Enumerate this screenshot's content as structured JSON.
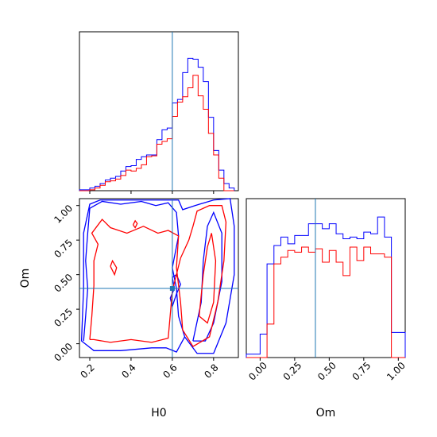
{
  "chart_data": {
    "type": "corner",
    "parameters": [
      "H0",
      "Om"
    ],
    "truths": {
      "H0": 0.6,
      "Om": 0.4
    },
    "colors": {
      "blue": "#0000ff",
      "red": "#ff0000",
      "truth": "#1f77b4"
    },
    "panels": [
      {
        "id": "hist_H0",
        "type": "histogram",
        "xlim": [
          0.15,
          0.92
        ],
        "bin_edges": [
          0.15,
          0.175,
          0.2,
          0.225,
          0.25,
          0.275,
          0.3,
          0.325,
          0.35,
          0.375,
          0.4,
          0.425,
          0.45,
          0.475,
          0.5,
          0.525,
          0.55,
          0.575,
          0.6,
          0.625,
          0.65,
          0.675,
          0.7,
          0.725,
          0.75,
          0.775,
          0.8,
          0.825,
          0.85,
          0.875,
          0.9
        ],
        "series": [
          {
            "color": "blue",
            "counts": [
              1,
              1,
              3,
              5,
              8,
              12,
              14,
              16,
              22,
              27,
              28,
              35,
              38,
              40,
              40,
              57,
              68,
              70,
              98,
              102,
              132,
              148,
              147,
              138,
              122,
              82,
              45,
              23,
              8,
              3
            ]
          },
          {
            "color": "red",
            "counts": [
              0,
              0,
              1,
              3,
              6,
              10,
              11,
              13,
              17,
              23,
              22,
              25,
              29,
              38,
              39,
              52,
              55,
              58,
              83,
              99,
              105,
              115,
              129,
              106,
              91,
              64,
              40,
              14,
              0,
              0
            ]
          }
        ],
        "xticks_visible": false
      },
      {
        "id": "hist_Om",
        "type": "histogram",
        "xlim": [
          -0.1,
          1.05
        ],
        "xlabel": "Om",
        "xticks": [
          "0.00",
          "0.25",
          "0.50",
          "0.75",
          "1.00"
        ],
        "bin_edges": [
          -0.1,
          -0.05,
          0.0,
          0.05,
          0.1,
          0.15,
          0.2,
          0.25,
          0.3,
          0.35,
          0.4,
          0.45,
          0.5,
          0.55,
          0.6,
          0.65,
          0.7,
          0.75,
          0.8,
          0.85,
          0.9,
          0.95,
          1.0,
          1.05
        ],
        "series": [
          {
            "color": "blue",
            "counts": [
              2,
              2,
              14,
              56,
              67,
              72,
              68,
              73,
              73,
              80,
              80,
              77,
              80,
              74,
              71,
              72,
              71,
              75,
              74,
              84,
              72,
              15,
              15
            ]
          },
          {
            "color": "red",
            "counts": [
              0,
              0,
              0,
              20,
              56,
              60,
              64,
              63,
              66,
              63,
              65,
              57,
              64,
              57,
              49,
              66,
              58,
              66,
              62,
              62,
              60,
              0,
              0
            ]
          }
        ],
        "ylim": [
          0,
          95
        ]
      },
      {
        "id": "contour_H0_Om",
        "type": "contour",
        "xlim": [
          0.15,
          0.92
        ],
        "ylim": [
          -0.1,
          1.05
        ],
        "xlabel": "H0",
        "ylabel": "Om",
        "xticks": [
          "0.2",
          "0.4",
          "0.6",
          "0.8"
        ],
        "yticks": [
          "0.00",
          "0.25",
          "0.50",
          "0.75",
          "1.00"
        ],
        "series": [
          {
            "color": "blue",
            "contours": [
              [
                [
                  0.17,
                  0.02
                ],
                [
                  0.18,
                  0.2
                ],
                [
                  0.19,
                  0.4
                ],
                [
                  0.18,
                  0.6
                ],
                [
                  0.19,
                  0.8
                ],
                [
                  0.2,
                  0.98
                ],
                [
                  0.26,
                  1.03
                ],
                [
                  0.35,
                  1.01
                ],
                [
                  0.45,
                  1.03
                ],
                [
                  0.52,
                  1.0
                ],
                [
                  0.58,
                  1.02
                ],
                [
                  0.62,
                  0.95
                ],
                [
                  0.63,
                  0.78
                ],
                [
                  0.6,
                  0.55
                ],
                [
                  0.62,
                  0.4
                ],
                [
                  0.63,
                  0.2
                ],
                [
                  0.66,
                  0.05
                ],
                [
                  0.72,
                  -0.07
                ],
                [
                  0.8,
                  -0.07
                ],
                [
                  0.86,
                  0.15
                ],
                [
                  0.9,
                  0.5
                ],
                [
                  0.9,
                  0.85
                ],
                [
                  0.88,
                  1.05
                ],
                [
                  0.8,
                  1.04
                ],
                [
                  0.71,
                  1.0
                ],
                [
                  0.65,
                  0.97
                ],
                [
                  0.63,
                  1.04
                ],
                [
                  0.55,
                  1.04
                ],
                [
                  0.4,
                  1.04
                ],
                [
                  0.25,
                  1.04
                ],
                [
                  0.2,
                  1.01
                ],
                [
                  0.17,
                  0.8
                ],
                [
                  0.17,
                  0.4
                ],
                [
                  0.16,
                  0.02
                ],
                [
                  0.22,
                  -0.05
                ],
                [
                  0.35,
                  -0.05
                ],
                [
                  0.5,
                  -0.03
                ],
                [
                  0.57,
                  -0.03
                ],
                [
                  0.62,
                  -0.06
                ],
                [
                  0.66,
                  0.05
                ]
              ],
              [
                [
                  0.6,
                  0.48
                ],
                [
                  0.61,
                  0.4
                ],
                [
                  0.59,
                  0.33
                ],
                [
                  0.6,
                  0.27
                ],
                [
                  0.62,
                  0.36
                ],
                [
                  0.64,
                  0.43
                ],
                [
                  0.62,
                  0.5
                ],
                [
                  0.6,
                  0.48
                ]
              ],
              [
                [
                  0.7,
                  0.02
                ],
                [
                  0.74,
                  0.3
                ],
                [
                  0.75,
                  0.6
                ],
                [
                  0.77,
                  0.85
                ],
                [
                  0.8,
                  0.95
                ],
                [
                  0.84,
                  0.8
                ],
                [
                  0.84,
                  0.45
                ],
                [
                  0.8,
                  0.15
                ],
                [
                  0.76,
                  0.02
                ],
                [
                  0.7,
                  0.02
                ]
              ]
            ]
          },
          {
            "color": "red",
            "contours": [
              [
                [
                  0.2,
                  0.03
                ],
                [
                  0.21,
                  0.2
                ],
                [
                  0.22,
                  0.42
                ],
                [
                  0.22,
                  0.6
                ],
                [
                  0.24,
                  0.72
                ],
                [
                  0.21,
                  0.8
                ],
                [
                  0.26,
                  0.9
                ],
                [
                  0.3,
                  0.84
                ],
                [
                  0.38,
                  0.8
                ],
                [
                  0.46,
                  0.85
                ],
                [
                  0.53,
                  0.8
                ],
                [
                  0.58,
                  0.82
                ],
                [
                  0.63,
                  0.78
                ],
                [
                  0.62,
                  0.55
                ],
                [
                  0.64,
                  0.3
                ],
                [
                  0.65,
                  0.1
                ],
                [
                  0.7,
                  -0.02
                ],
                [
                  0.78,
                  0.05
                ],
                [
                  0.82,
                  0.3
                ],
                [
                  0.85,
                  0.6
                ],
                [
                  0.86,
                  0.88
                ],
                [
                  0.84,
                  1.0
                ],
                [
                  0.78,
                  1.0
                ],
                [
                  0.72,
                  0.96
                ],
                [
                  0.7,
                  0.85
                ],
                [
                  0.68,
                  0.75
                ],
                [
                  0.64,
                  0.62
                ],
                [
                  0.62,
                  0.5
                ],
                [
                  0.6,
                  0.38
                ],
                [
                  0.58,
                  0.04
                ],
                [
                  0.5,
                  0.01
                ],
                [
                  0.4,
                  0.03
                ],
                [
                  0.3,
                  0.01
                ],
                [
                  0.22,
                  0.03
                ],
                [
                  0.2,
                  0.03
                ]
              ],
              [
                [
                  0.73,
                  0.2
                ],
                [
                  0.75,
                  0.5
                ],
                [
                  0.77,
                  0.7
                ],
                [
                  0.79,
                  0.8
                ],
                [
                  0.81,
                  0.6
                ],
                [
                  0.8,
                  0.3
                ],
                [
                  0.77,
                  0.15
                ],
                [
                  0.73,
                  0.2
                ]
              ],
              [
                [
                  0.3,
                  0.56
                ],
                [
                  0.32,
                  0.5
                ],
                [
                  0.33,
                  0.55
                ],
                [
                  0.31,
                  0.6
                ],
                [
                  0.3,
                  0.56
                ]
              ],
              [
                [
                  0.41,
                  0.86
                ],
                [
                  0.42,
                  0.84
                ],
                [
                  0.43,
                  0.87
                ],
                [
                  0.42,
                  0.89
                ],
                [
                  0.41,
                  0.86
                ]
              ]
            ]
          }
        ]
      }
    ]
  }
}
